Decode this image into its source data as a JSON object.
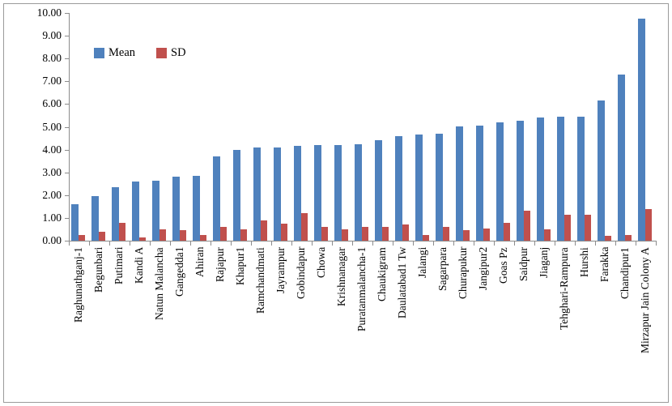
{
  "chart_data": {
    "type": "bar",
    "title": "",
    "xlabel": "",
    "ylabel": "",
    "ylim": [
      0,
      10
    ],
    "ytick_interval": 1,
    "ytick_labels": [
      "0.00",
      "1.00",
      "2.00",
      "3.00",
      "4.00",
      "5.00",
      "6.00",
      "7.00",
      "8.00",
      "9.00",
      "10.00"
    ],
    "grid": false,
    "legend_position": "inside-top-left",
    "categories": [
      "Raghunathganj-1",
      "Begunbari",
      "Putimari",
      "Kandi A",
      "Natun Malancha",
      "Gangedda1",
      "Ahiran",
      "Rajapur",
      "Khapur1",
      "Ramchandmati",
      "Jayrampur",
      "Gobindapur",
      "Chowa",
      "Krishnanagar",
      "Puratanmalancha-1",
      "Chaukigram",
      "Daulatabad1 Tw",
      "Jalangi",
      "Sagarpara",
      "Churapukur",
      "Jangipur2",
      "Goas Pz",
      "Saidpur",
      "Jiaganj",
      "Tehghari-Rampura",
      "Hurshi",
      "Farakka",
      "Chandipur1",
      "Mirzapur Jain Colony A"
    ],
    "series": [
      {
        "name": "Mean",
        "color": "#4f81bd",
        "values": [
          1.6,
          1.95,
          2.35,
          2.6,
          2.65,
          2.8,
          2.85,
          3.7,
          4.0,
          4.1,
          4.1,
          4.15,
          4.2,
          4.2,
          4.25,
          4.4,
          4.6,
          4.65,
          4.7,
          5.0,
          5.05,
          5.2,
          5.25,
          5.4,
          5.45,
          5.45,
          6.15,
          7.3,
          9.75
        ]
      },
      {
        "name": "SD",
        "color": "#c0504d",
        "values": [
          0.25,
          0.4,
          0.8,
          0.15,
          0.5,
          0.45,
          0.25,
          0.6,
          0.5,
          0.9,
          0.75,
          1.2,
          0.6,
          0.5,
          0.6,
          0.6,
          0.7,
          0.25,
          0.6,
          0.45,
          0.55,
          0.8,
          1.3,
          0.5,
          1.15,
          1.15,
          0.2,
          0.25,
          1.4
        ]
      }
    ],
    "axis_color": "#8c8c8c"
  }
}
